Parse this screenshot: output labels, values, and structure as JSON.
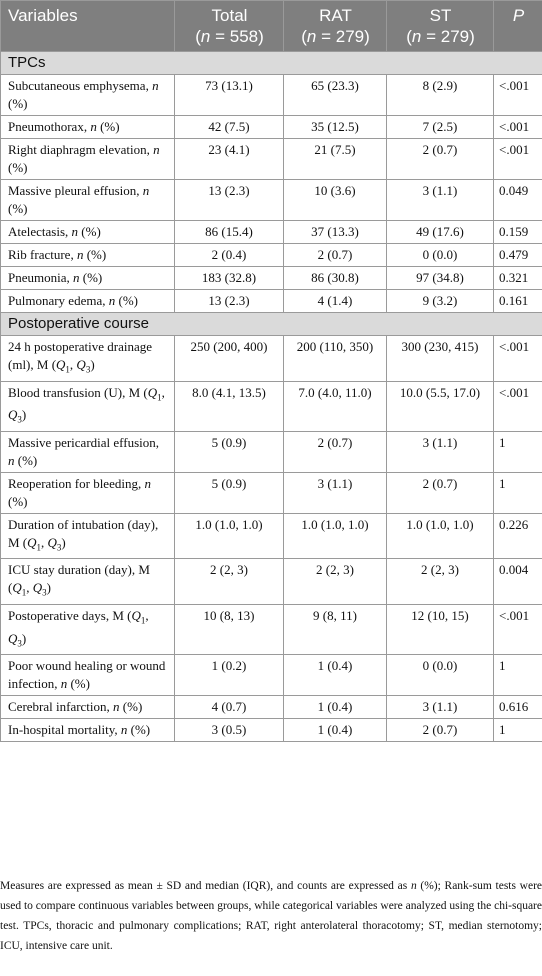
{
  "header": {
    "variables": "Variables",
    "total_label": "Total",
    "total_n": "(n = 558)",
    "rat_label": "RAT",
    "rat_n": "(n = 279)",
    "st_label": "ST",
    "st_n": "(n = 279)",
    "p": "P"
  },
  "sections": [
    {
      "title": "TPCs",
      "rows": [
        {
          "name": "Subcutaneous emphysema",
          "unit": "n (%)",
          "total": "73 (13.1)",
          "rat": "65 (23.3)",
          "st": "8 (2.9)",
          "p": "<.001"
        },
        {
          "name": "Pneumothorax",
          "unit": "n (%)",
          "total": "42 (7.5)",
          "rat": "35 (12.5)",
          "st": "7 (2.5)",
          "p": "<.001"
        },
        {
          "name": "Right diaphragm elevation",
          "unit": "n (%)",
          "total": "23 (4.1)",
          "rat": "21 (7.5)",
          "st": "2 (0.7)",
          "p": "<.001"
        },
        {
          "name": "Massive pleural effusion",
          "unit": "n (%)",
          "total": "13 (2.3)",
          "rat": "10 (3.6)",
          "st": "3 (1.1)",
          "p": "0.049"
        },
        {
          "name": "Atelectasis",
          "unit": "n (%)",
          "total": "86 (15.4)",
          "rat": "37 (13.3)",
          "st": "49 (17.6)",
          "p": "0.159"
        },
        {
          "name": "Rib fracture",
          "unit": "n (%)",
          "total": "2 (0.4)",
          "rat": "2 (0.7)",
          "st": "0 (0.0)",
          "p": "0.479"
        },
        {
          "name": "Pneumonia",
          "unit": "n (%)",
          "total": "183 (32.8)",
          "rat": "86 (30.8)",
          "st": "97 (34.8)",
          "p": "0.321"
        },
        {
          "name": "Pulmonary edema",
          "unit": "n (%)",
          "total": "13 (2.3)",
          "rat": "4 (1.4)",
          "st": "9 (3.2)",
          "p": "0.161"
        }
      ]
    },
    {
      "title": "Postoperative course",
      "rows": [
        {
          "name": "24 h postoperative drainage (ml)",
          "unit": "M (Q1, Q3)",
          "total": "250 (200, 400)",
          "rat": "200 (110, 350)",
          "st": "300 (230, 415)",
          "p": "<.001"
        },
        {
          "name": "Blood transfusion (U)",
          "unit": "M (Q1, Q3)",
          "total": "8.0 (4.1, 13.5)",
          "rat": "7.0 (4.0, 11.0)",
          "st": "10.0 (5.5, 17.0)",
          "p": "<.001"
        },
        {
          "name": "Massive pericardial effusion",
          "unit": "n (%)",
          "total": "5 (0.9)",
          "rat": "2 (0.7)",
          "st": "3 (1.1)",
          "p": "1"
        },
        {
          "name": "Reoperation for bleeding",
          "unit": "n (%)",
          "total": "5 (0.9)",
          "rat": "3 (1.1)",
          "st": "2 (0.7)",
          "p": "1"
        },
        {
          "name": "Duration of intubation (day)",
          "unit": "M (Q1, Q3)",
          "total": "1.0 (1.0, 1.0)",
          "rat": "1.0 (1.0, 1.0)",
          "st": "1.0 (1.0, 1.0)",
          "p": "0.226"
        },
        {
          "name": "ICU stay duration (day)",
          "unit": "M (Q1, Q3)",
          "total": "2 (2, 3)",
          "rat": "2 (2, 3)",
          "st": "2 (2, 3)",
          "p": "0.004"
        },
        {
          "name": "Postoperative days",
          "unit": "M (Q1, Q3)",
          "total": "10 (8, 13)",
          "rat": "9 (8, 11)",
          "st": "12 (10, 15)",
          "p": "<.001"
        },
        {
          "name": "Poor wound healing or wound infection",
          "unit": "n (%)",
          "total": "1 (0.2)",
          "rat": "1 (0.4)",
          "st": "0 (0.0)",
          "p": "1"
        },
        {
          "name": "Cerebral infarction",
          "unit": "n (%)",
          "total": "4 (0.7)",
          "rat": "1 (0.4)",
          "st": "3 (1.1)",
          "p": "0.616"
        },
        {
          "name": "In-hospital mortality",
          "unit": "n (%)",
          "total": "3 (0.5)",
          "rat": "1 (0.4)",
          "st": "2 (0.7)",
          "p": "1"
        }
      ]
    }
  ],
  "footnote": "Measures are expressed as mean ± SD and median (IQR), and counts are expressed as n (%); Rank-sum tests were used to compare continuous variables between groups, while categorical variables were analyzed using the chi-square test. TPCs, thoracic and pulmonary complications; RAT, right anterolateral thoracotomy; ST, median sternotomy; ICU, intensive care unit."
}
